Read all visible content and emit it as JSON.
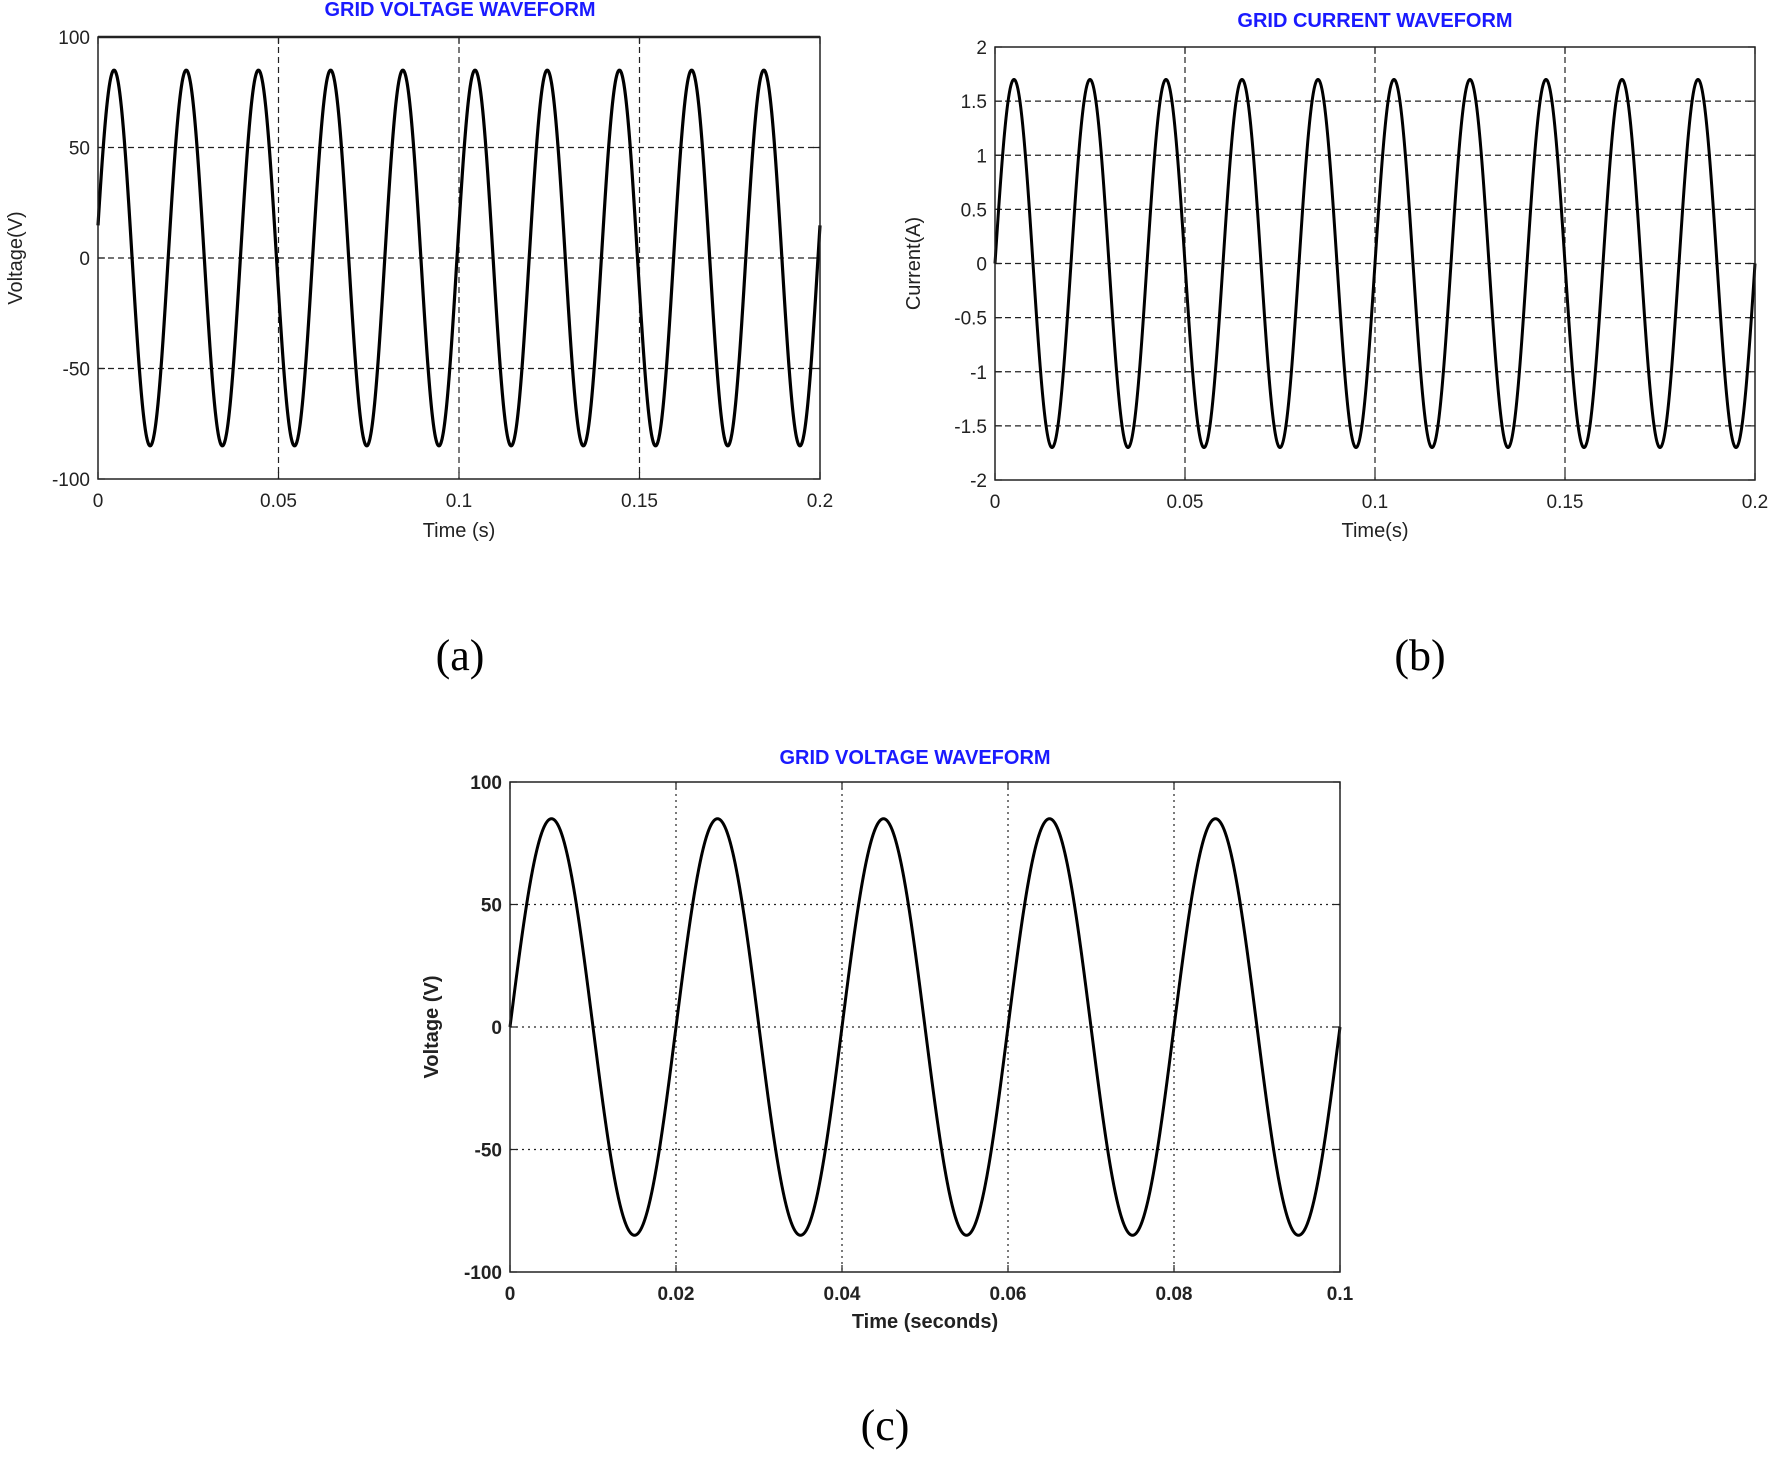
{
  "chart_data": [
    {
      "type": "line",
      "title": "GRID VOLTAGE WAVEFORM",
      "xlabel": "Time (s)",
      "ylabel": "Voltage(V)",
      "xlim": [
        0,
        0.2
      ],
      "ylim": [
        -100,
        100
      ],
      "xticks": [
        "0",
        "0.05",
        "0.1",
        "0.15",
        "0.2"
      ],
      "yticks": [
        "100",
        "50",
        "0",
        "-50",
        "-100"
      ],
      "grid": true,
      "series": [
        {
          "amplitude": 85,
          "frequency_hz": 50,
          "phase_deg": 10,
          "color": "#000000"
        }
      ]
    },
    {
      "type": "line",
      "title": "GRID CURRENT WAVEFORM",
      "xlabel": "Time(s)",
      "ylabel": "Current(A)",
      "xlim": [
        0,
        0.2
      ],
      "ylim": [
        -2,
        2
      ],
      "xticks": [
        "0",
        "0.05",
        "0.1",
        "0.15",
        "0.2"
      ],
      "yticks": [
        "2",
        "1.5",
        "1",
        "0.5",
        "0",
        "-0.5",
        "-1",
        "-1.5",
        "-2"
      ],
      "grid": true,
      "series": [
        {
          "amplitude": 1.7,
          "frequency_hz": 50,
          "phase_deg": 0,
          "color": "#000000"
        }
      ]
    },
    {
      "type": "line",
      "title": "GRID VOLTAGE WAVEFORM",
      "xlabel": "Time (seconds)",
      "ylabel": "Voltage (V)",
      "xlim": [
        0,
        0.1
      ],
      "ylim": [
        -100,
        100
      ],
      "xticks": [
        "0",
        "0.02",
        "0.04",
        "0.06",
        "0.08",
        "0.1"
      ],
      "yticks": [
        "100",
        "50",
        "0",
        "-50",
        "-100"
      ],
      "grid": true,
      "series": [
        {
          "amplitude": 85,
          "frequency_hz": 50,
          "phase_deg": 0,
          "color": "#000000"
        }
      ]
    }
  ],
  "captions": [
    "(a)",
    "(b)",
    "(c)"
  ]
}
